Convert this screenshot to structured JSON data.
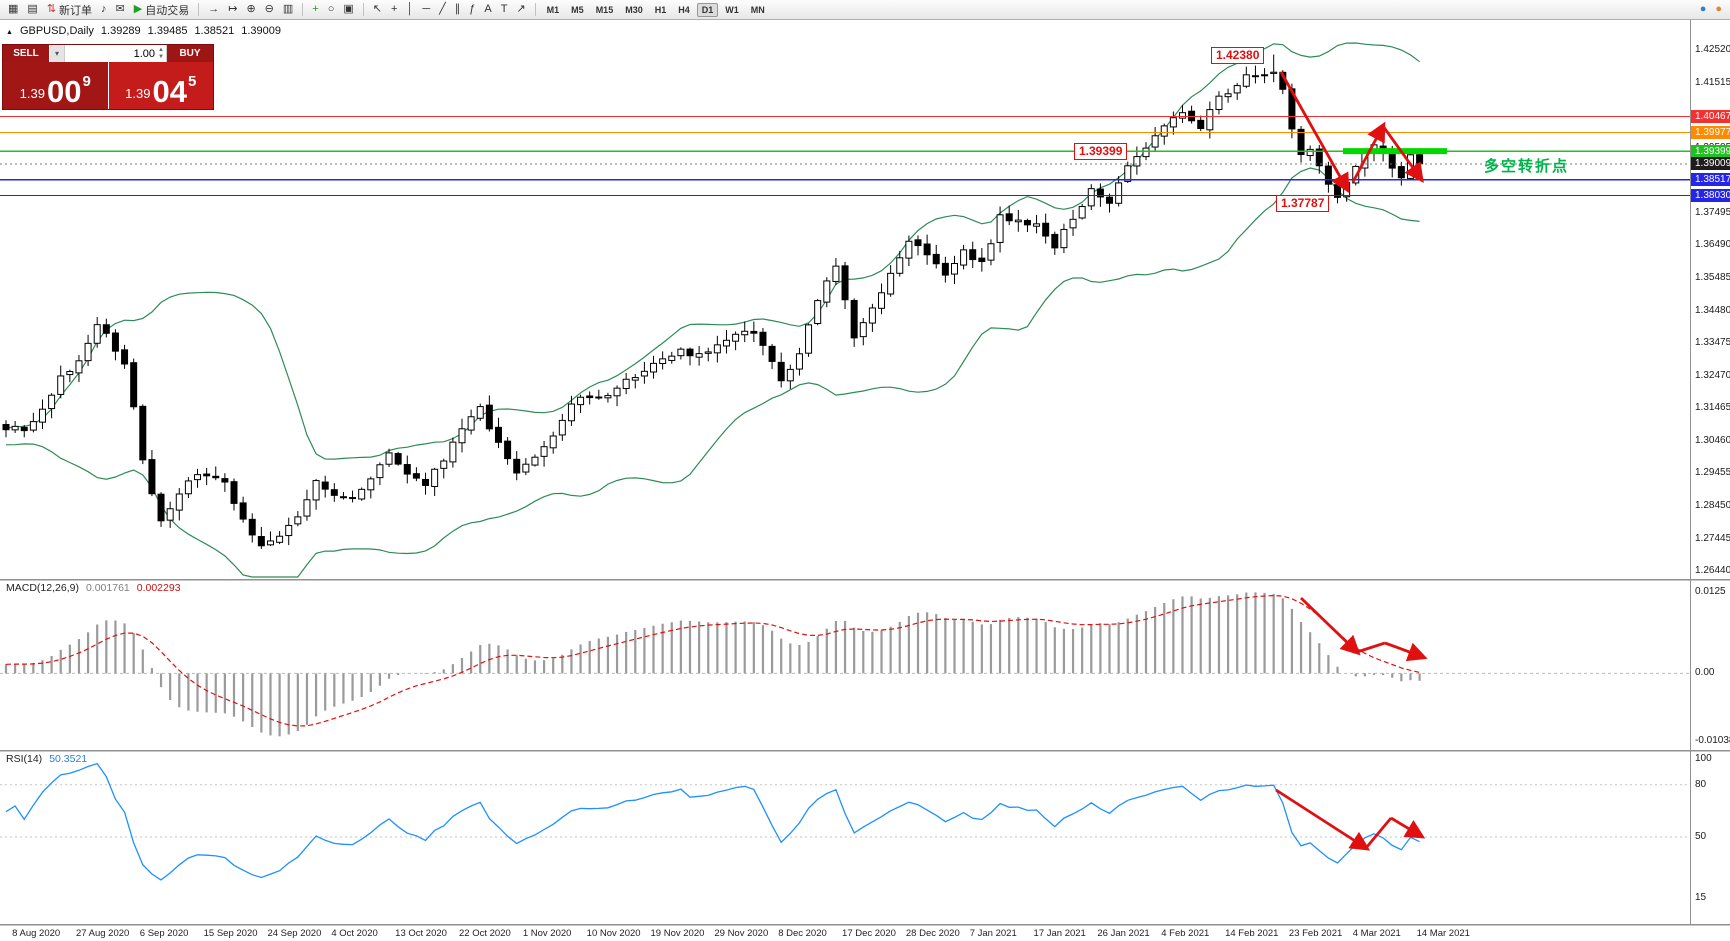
{
  "colors": {
    "bull": "#ffffff",
    "bear": "#000000",
    "wick": "#000000",
    "band": "#2E8B57",
    "macd_hist": "#9a9a9a",
    "macd_signal": "#e01010",
    "rsi_line": "#1E90FF",
    "arrow": "#e01010",
    "segment": "#00d800",
    "current_line": "#777777",
    "annotation_red": "#e01010",
    "note_green": "#00b34a"
  },
  "toolbar": {
    "items": [
      {
        "kind": "icon",
        "name": "new-chart-icon",
        "glyph": "▦"
      },
      {
        "kind": "icon",
        "name": "data-window-icon",
        "glyph": "▤"
      },
      {
        "kind": "button",
        "name": "new-order-button",
        "glyph": "⇅",
        "glyph_color": "#cc3322",
        "label": "新订单"
      },
      {
        "kind": "icon",
        "name": "sound-alert-icon",
        "glyph": "♪"
      },
      {
        "kind": "icon",
        "name": "mail-icon",
        "glyph": "✉"
      },
      {
        "kind": "button",
        "name": "autotrading-button",
        "glyph": "▶",
        "glyph_color": "#1fa01f",
        "label": "自动交易"
      },
      {
        "kind": "sep"
      },
      {
        "kind": "icon",
        "name": "autoscroll-icon",
        "glyph": "→"
      },
      {
        "kind": "icon",
        "name": "chart-shift-icon",
        "glyph": "↦"
      },
      {
        "kind": "icon",
        "name": "zoom-in-icon",
        "glyph": "⊕"
      },
      {
        "kind": "icon",
        "name": "zoom-out-icon",
        "glyph": "⊖"
      },
      {
        "kind": "icon",
        "name": "tile-windows-icon",
        "glyph": "▥"
      },
      {
        "kind": "sep"
      },
      {
        "kind": "icon",
        "name": "indicators-icon",
        "glyph": "+",
        "glyph_color": "#1fa01f"
      },
      {
        "kind": "icon",
        "name": "periods-icon",
        "glyph": "○"
      },
      {
        "kind": "icon",
        "name": "templates-icon",
        "glyph": "▣"
      },
      {
        "kind": "sep"
      },
      {
        "kind": "icon",
        "name": "cursor-icon",
        "glyph": "↖"
      },
      {
        "kind": "icon",
        "name": "crosshair-icon",
        "glyph": "+"
      },
      {
        "kind": "icon",
        "name": "vertical-line-icon",
        "glyph": "│"
      },
      {
        "kind": "icon",
        "name": "horizontal-line-icon",
        "glyph": "─"
      },
      {
        "kind": "icon",
        "name": "trendline-icon",
        "glyph": "╱"
      },
      {
        "kind": "icon",
        "name": "channel-icon",
        "glyph": "∥"
      },
      {
        "kind": "icon",
        "name": "fibonacci-icon",
        "glyph": "ƒ"
      },
      {
        "kind": "icon",
        "name": "text-icon",
        "glyph": "A"
      },
      {
        "kind": "icon",
        "name": "text-label-icon",
        "glyph": "T"
      },
      {
        "kind": "icon",
        "name": "arrows-tool-icon",
        "glyph": "↗"
      },
      {
        "kind": "sep"
      },
      {
        "kind": "timeframes"
      },
      {
        "kind": "spacer"
      },
      {
        "kind": "icon",
        "name": "community-icon",
        "glyph": "●",
        "glyph_color": "#2f7fd6"
      },
      {
        "kind": "icon",
        "name": "notifications-icon",
        "glyph": "●",
        "glyph_color": "#f08030"
      }
    ],
    "timeframes": [
      "M1",
      "M5",
      "M15",
      "M30",
      "H1",
      "H4",
      "D1",
      "W1",
      "MN"
    ],
    "active_timeframe": "D1"
  },
  "trade_panel": {
    "sell_label": "SELL",
    "buy_label": "BUY",
    "volume": "1.00",
    "caret": "▾",
    "spin_up": "▲",
    "spin_down": "▼",
    "sell_price_prefix": "1.39",
    "sell_price_big": "00",
    "sell_price_sup": "9",
    "buy_price_prefix": "1.39",
    "buy_price_big": "04",
    "buy_price_sup": "5"
  },
  "chart_header": {
    "marker": "▲",
    "symbol": "GBPUSD,Daily",
    "open": "1.39289",
    "high": "1.39485",
    "low": "1.38521",
    "close": "1.39009"
  },
  "annotations": {
    "peak_price": "1.42380",
    "level_price": "1.39399",
    "trough_price": "1.37787",
    "turning_point_note": "多空转折点"
  },
  "levels": [
    {
      "price": 1.40467,
      "label": "1.40467",
      "color": "#f43030",
      "current": false
    },
    {
      "price": 1.39977,
      "label": "1.39977",
      "color": "#ff8a00",
      "current": false
    },
    {
      "price": 1.39399,
      "label": "1.39399",
      "color": "#22c022",
      "current": false
    },
    {
      "price": 1.39009,
      "label": "1.39009",
      "color": "#2f2f2f",
      "current": true
    },
    {
      "price": 1.38517,
      "label": "1.38517",
      "color": "#2525e8",
      "current": false
    },
    {
      "price": 1.3803,
      "label": "1.38030",
      "color": "#2525e8",
      "current": false
    }
  ],
  "price_axis": {
    "tick_labels": [
      "1.42520",
      "1.41515",
      "1.40510",
      "1.39505",
      "1.38500",
      "1.37495",
      "1.36490",
      "1.35485",
      "1.34480",
      "1.33475",
      "1.32470",
      "1.31465",
      "1.30460",
      "1.29455",
      "1.28450",
      "1.27445",
      "1.26440"
    ]
  },
  "date_axis": {
    "labels": [
      "8 Aug 2020",
      "27 Aug 2020",
      "6 Sep 2020",
      "15 Sep 2020",
      "24 Sep 2020",
      "4 Oct 2020",
      "13 Oct 2020",
      "22 Oct 2020",
      "1 Nov 2020",
      "10 Nov 2020",
      "19 Nov 2020",
      "29 Nov 2020",
      "8 Dec 2020",
      "17 Dec 2020",
      "28 Dec 2020",
      "7 Jan 2021",
      "17 Jan 2021",
      "26 Jan 2021",
      "4 Feb 2021",
      "14 Feb 2021",
      "23 Feb 2021",
      "4 Mar 2021",
      "14 Mar 2021"
    ]
  },
  "indicators": {
    "macd": {
      "label": "MACD(12,26,9)",
      "value_main": "0.001761",
      "value_signal": "0.002293",
      "scale": [
        "0.0125",
        "0.00",
        "-0.01038"
      ]
    },
    "rsi": {
      "label": "RSI(14)",
      "value": "50.3521",
      "scale": [
        "100",
        "80",
        "50",
        "15"
      ],
      "level_lines": [
        80,
        50
      ]
    }
  },
  "chart_data": {
    "type": "candlestick",
    "symbol": "GBPUSD",
    "period": "Daily",
    "bars": 156,
    "title": "GBPUSD,Daily",
    "last_candle": {
      "open": 1.39289,
      "high": 1.39485,
      "low": 1.38521,
      "close": 1.39009
    },
    "forced_points": {
      "peak_bar": 139,
      "peak_high": 1.4238,
      "trough_bar": 146,
      "trough_low": 1.37787
    },
    "close_keyframes": [
      [
        0,
        1.309
      ],
      [
        2,
        1.3075
      ],
      [
        4,
        1.314
      ],
      [
        6,
        1.324
      ],
      [
        8,
        1.33
      ],
      [
        10,
        1.3395
      ],
      [
        11,
        1.3383
      ],
      [
        13,
        1.3279
      ],
      [
        14,
        1.315
      ],
      [
        15,
        1.2982
      ],
      [
        17,
        1.2795
      ],
      [
        19,
        1.2886
      ],
      [
        21,
        1.294
      ],
      [
        24,
        1.2917
      ],
      [
        26,
        1.28
      ],
      [
        28,
        1.2724
      ],
      [
        30,
        1.2745
      ],
      [
        32,
        1.2806
      ],
      [
        34,
        1.2921
      ],
      [
        36,
        1.287
      ],
      [
        38,
        1.2875
      ],
      [
        40,
        1.2936
      ],
      [
        42,
        1.3
      ],
      [
        44,
        1.2933
      ],
      [
        46,
        1.2915
      ],
      [
        48,
        1.299
      ],
      [
        50,
        1.3083
      ],
      [
        52,
        1.3142
      ],
      [
        54,
        1.3044
      ],
      [
        56,
        1.2947
      ],
      [
        58,
        1.2987
      ],
      [
        60,
        1.306
      ],
      [
        62,
        1.316
      ],
      [
        64,
        1.318
      ],
      [
        66,
        1.3191
      ],
      [
        68,
        1.323
      ],
      [
        70,
        1.3267
      ],
      [
        72,
        1.33
      ],
      [
        74,
        1.3324
      ],
      [
        76,
        1.3312
      ],
      [
        78,
        1.334
      ],
      [
        80,
        1.3368
      ],
      [
        82,
        1.3386
      ],
      [
        84,
        1.3294
      ],
      [
        85,
        1.3224
      ],
      [
        87,
        1.3325
      ],
      [
        89,
        1.348
      ],
      [
        91,
        1.3582
      ],
      [
        93,
        1.3365
      ],
      [
        95,
        1.3455
      ],
      [
        97,
        1.356
      ],
      [
        99,
        1.367
      ],
      [
        101,
        1.3628
      ],
      [
        103,
        1.3558
      ],
      [
        105,
        1.3638
      ],
      [
        107,
        1.3589
      ],
      [
        109,
        1.3733
      ],
      [
        111,
        1.3735
      ],
      [
        113,
        1.3708
      ],
      [
        115,
        1.3645
      ],
      [
        117,
        1.3733
      ],
      [
        119,
        1.3815
      ],
      [
        121,
        1.379
      ],
      [
        123,
        1.3903
      ],
      [
        125,
        1.395
      ],
      [
        127,
        1.4013
      ],
      [
        129,
        1.406
      ],
      [
        131,
        1.402
      ],
      [
        133,
        1.41
      ],
      [
        135,
        1.415
      ],
      [
        137,
        1.418
      ],
      [
        139,
        1.419
      ],
      [
        140,
        1.4141
      ],
      [
        141,
        1.4013
      ],
      [
        142,
        1.393
      ],
      [
        143,
        1.3953
      ],
      [
        144,
        1.389
      ],
      [
        145,
        1.3843
      ],
      [
        146,
        1.379
      ],
      [
        147,
        1.3845
      ],
      [
        148,
        1.39
      ],
      [
        149,
        1.393
      ],
      [
        150,
        1.397
      ],
      [
        151,
        1.394
      ],
      [
        152,
        1.389
      ],
      [
        153,
        1.386
      ],
      [
        154,
        1.392
      ],
      [
        155,
        1.3901
      ]
    ],
    "bollinger": {
      "period": 20,
      "deviation": 2
    },
    "macd": {
      "fast": 12,
      "slow": 26,
      "signal": 9,
      "scale_max": 0.0125,
      "scale_min": -0.01038
    },
    "rsi": {
      "period": 14
    },
    "price_axis_anchor": {
      "top_price": 1.4252,
      "step": 0.01005,
      "count": 17
    }
  }
}
